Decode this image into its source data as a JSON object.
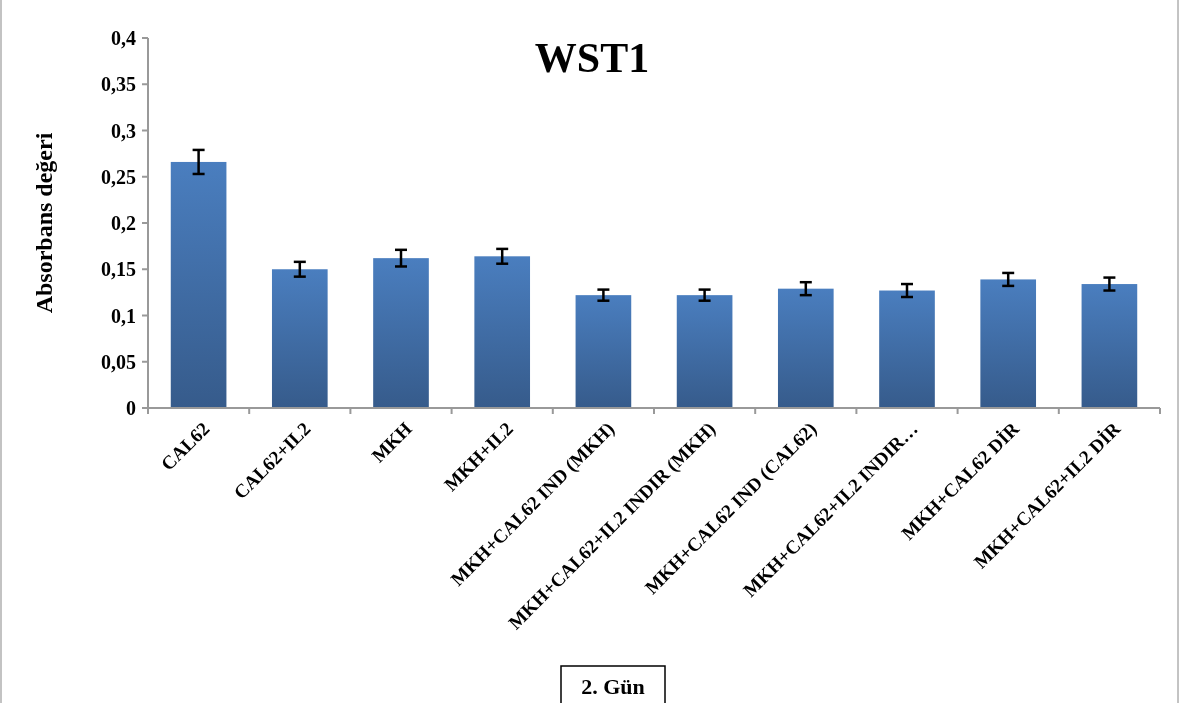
{
  "chart_data": {
    "type": "bar",
    "title": "WST1",
    "ylabel": "Absorbans değeri",
    "categories": [
      "CAL62",
      "CAL62+IL2",
      "MKH",
      "MKH+IL2",
      "MKH+CAL62 IND (MKH)",
      "MKH+CAL62+IL2 INDIR (MKH)",
      "MKH+CAL62 IND (CAL62)",
      "MKH+CAL62+IL2 INDIR…",
      "MKH+CAL62 DİR",
      "MKH+CAL62+IL2 DİR"
    ],
    "values": [
      0.266,
      0.15,
      0.162,
      0.164,
      0.122,
      0.122,
      0.129,
      0.127,
      0.139,
      0.134
    ],
    "errors": [
      0.013,
      0.008,
      0.009,
      0.008,
      0.006,
      0.006,
      0.007,
      0.007,
      0.007,
      0.007
    ],
    "color": "#4a7ebf",
    "ylim": [
      0,
      0.4
    ],
    "yticks": [
      {
        "value": 0,
        "label": "0"
      },
      {
        "value": 0.05,
        "label": "0,05"
      },
      {
        "value": 0.1,
        "label": "0,1"
      },
      {
        "value": 0.15,
        "label": "0,15"
      },
      {
        "value": 0.2,
        "label": "0,2"
      },
      {
        "value": 0.25,
        "label": "0,25"
      },
      {
        "value": 0.3,
        "label": "0,3"
      },
      {
        "value": 0.35,
        "label": "0,35"
      },
      {
        "value": 0.4,
        "label": "0,4"
      }
    ],
    "grid": false,
    "annotations": [
      "2. Gün"
    ]
  }
}
